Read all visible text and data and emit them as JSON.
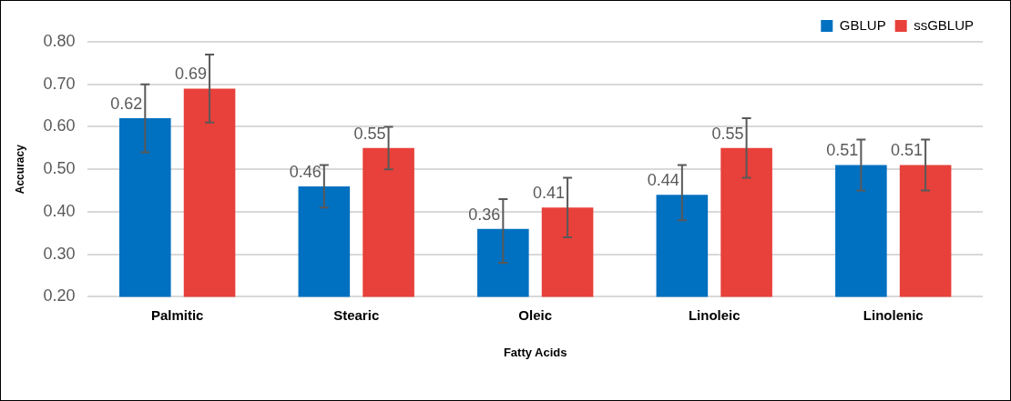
{
  "chart_data": {
    "type": "bar",
    "xlabel": "Fatty Acids",
    "ylabel": "Accuracy",
    "categories": [
      "Palmitic",
      "Stearic",
      "Oleic",
      "Linoleic",
      "Linolenic"
    ],
    "series": [
      {
        "name": "GBLUP",
        "color": "#0070c0",
        "values": [
          0.62,
          0.46,
          0.36,
          0.44,
          0.51
        ],
        "errors": [
          [
            0.54,
            0.7
          ],
          [
            0.41,
            0.51
          ],
          [
            0.28,
            0.43
          ],
          [
            0.38,
            0.51
          ],
          [
            0.45,
            0.57
          ]
        ]
      },
      {
        "name": "ssGBLUP",
        "color": "#e8403a",
        "values": [
          0.69,
          0.55,
          0.41,
          0.55,
          0.51
        ],
        "errors": [
          [
            0.61,
            0.77
          ],
          [
            0.5,
            0.6
          ],
          [
            0.34,
            0.48
          ],
          [
            0.48,
            0.62
          ],
          [
            0.45,
            0.57
          ]
        ]
      }
    ],
    "ylim": [
      0.2,
      0.8
    ],
    "yticks": [
      {
        "value": 0.2,
        "label": "0.20"
      },
      {
        "value": 0.3,
        "label": "0.30"
      },
      {
        "value": 0.4,
        "label": "0.40"
      },
      {
        "value": 0.5,
        "label": "0.50"
      },
      {
        "value": 0.6,
        "label": "0.60"
      },
      {
        "value": 0.7,
        "label": "0.70"
      },
      {
        "value": 0.8,
        "label": "0.80"
      }
    ],
    "grid": "y",
    "legend": "top right",
    "data_labels": true
  }
}
